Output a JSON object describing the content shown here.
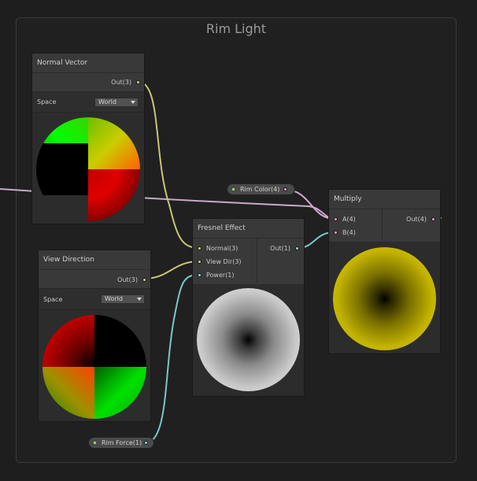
{
  "group": {
    "title": "Rim Light"
  },
  "nodes": {
    "normal_vector": {
      "title": "Normal Vector",
      "output": "Out(3)",
      "space_label": "Space",
      "space_value": "World"
    },
    "view_direction": {
      "title": "View Direction",
      "output": "Out(3)",
      "space_label": "Space",
      "space_value": "World"
    },
    "fresnel": {
      "title": "Fresnel Effect",
      "inputs": [
        "Normal(3)",
        "View Dir(3)",
        "Power(1)"
      ],
      "output": "Out(1)"
    },
    "multiply": {
      "title": "Multiply",
      "inputs": [
        "A(4)",
        "B(4)"
      ],
      "output": "Out(4)"
    }
  },
  "properties": {
    "rim_color": "Rim Color(4)",
    "rim_force": "Rim Force(1)"
  },
  "colors": {
    "vector3_port": "#d8d87a",
    "vector1_port": "#84e4e7",
    "vector4_port": "#e4a6d8",
    "multiply_preview": "#e6d400"
  }
}
